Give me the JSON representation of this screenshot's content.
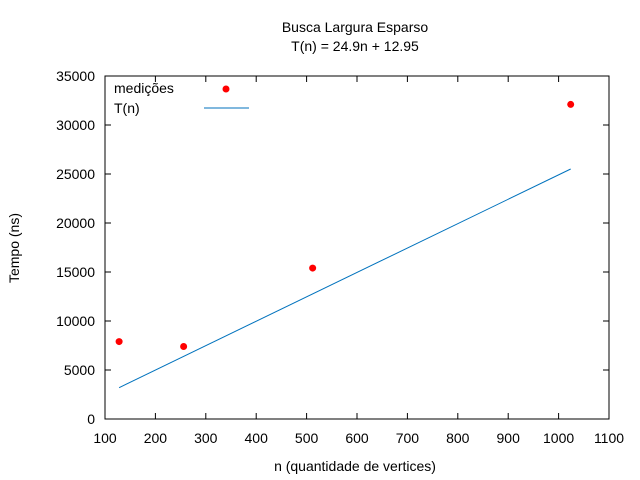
{
  "chart_data": {
    "type": "scatter",
    "title": "Busca Largura Esparso",
    "subtitle": "T(n) = 24.9n + 12.95",
    "xlabel": "n (quantidade de vertices)",
    "ylabel": "Tempo (ns)",
    "xlim": [
      100,
      1100
    ],
    "ylim": [
      0,
      35000
    ],
    "x_ticks": [
      100,
      200,
      300,
      400,
      500,
      600,
      700,
      800,
      900,
      1000,
      1100
    ],
    "y_ticks": [
      0,
      5000,
      10000,
      15000,
      20000,
      25000,
      30000,
      35000
    ],
    "grid": false,
    "legend_position": "top-left",
    "series": [
      {
        "name": "medições",
        "kind": "points",
        "color": "#ff0000",
        "x": [
          128,
          256,
          512,
          1024
        ],
        "y": [
          7900,
          7400,
          15400,
          32100
        ]
      },
      {
        "name": "T(n)",
        "kind": "line",
        "color": "#0072bd",
        "x": [
          128,
          1024
        ],
        "y": [
          3200,
          25510
        ]
      }
    ]
  }
}
